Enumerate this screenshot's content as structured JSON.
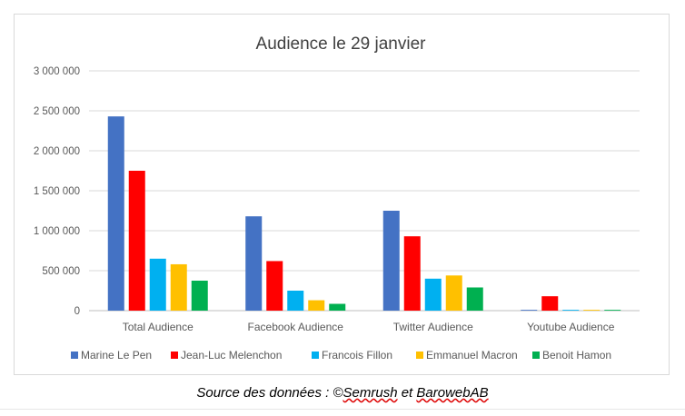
{
  "chart_data": {
    "type": "bar",
    "title": "Audience le  29 janvier",
    "categories": [
      "Total Audience",
      "Facebook Audience",
      "Twitter Audience",
      "Youtube Audience"
    ],
    "series": [
      {
        "name": "Marine Le Pen",
        "color": "#4472C4",
        "values": [
          2430000,
          1180000,
          1250000,
          10000
        ]
      },
      {
        "name": "Jean-Luc Melenchon",
        "color": "#FF0000",
        "values": [
          1750000,
          620000,
          930000,
          180000
        ]
      },
      {
        "name": "Francois Fillon",
        "color": "#00B0F0",
        "values": [
          650000,
          250000,
          400000,
          10000
        ]
      },
      {
        "name": "Emmanuel Macron",
        "color": "#FFC000",
        "values": [
          580000,
          130000,
          440000,
          10000
        ]
      },
      {
        "name": "Benoit Hamon",
        "color": "#00B050",
        "values": [
          375000,
          85000,
          290000,
          10000
        ]
      }
    ],
    "yticks": [
      0,
      500000,
      1000000,
      1500000,
      2000000,
      2500000,
      3000000
    ],
    "ytick_labels": [
      "0",
      "500 000",
      "1 000 000",
      "1 500 000",
      "2 000 000",
      "2 500 000",
      "3 000 000"
    ],
    "ylim": [
      0,
      3000000
    ],
    "grid": true,
    "legend": "bottom"
  },
  "caption": {
    "prefix": "Source des données : ©",
    "source1": "Semrush",
    "middle": " et ",
    "source2": "BarowebAB"
  }
}
